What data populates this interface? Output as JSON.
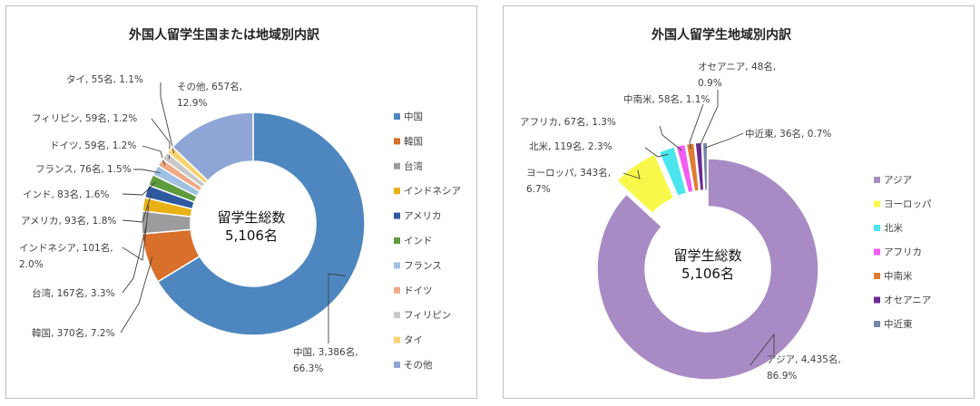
{
  "chart_data": [
    {
      "type": "pie",
      "title": "外国人留学生国または地域別内訳",
      "center_text": [
        "留学生総数",
        "5,106名"
      ],
      "legend_position": "right",
      "slices": [
        {
          "name": "中国",
          "value": 3386,
          "label": [
            "中国, 3,386名,",
            "66.3%"
          ],
          "color": "#4e86c0"
        },
        {
          "name": "韓国",
          "value": 370,
          "label": [
            "韓国, 370名, 7.2%"
          ],
          "color": "#d86f2a"
        },
        {
          "name": "台湾",
          "value": 167,
          "label": [
            "台湾, 167名, 3.3%"
          ],
          "color": "#9c9c9c"
        },
        {
          "name": "インドネシア",
          "value": 101,
          "label": [
            "インドネシア, 101名,",
            "2.0%"
          ],
          "color": "#e8b012"
        },
        {
          "name": "アメリカ",
          "value": 93,
          "label": [
            "アメリカ, 93名, 1.8%"
          ],
          "color": "#2f5aa0"
        },
        {
          "name": "インド",
          "value": 83,
          "label": [
            "インド, 83名, 1.6%"
          ],
          "color": "#5d9b3c"
        },
        {
          "name": "フランス",
          "value": 76,
          "label": [
            "フランス, 76名, 1.5%"
          ],
          "color": "#9ec0e2"
        },
        {
          "name": "ドイツ",
          "value": 59,
          "label": [
            "ドイツ, 59名, 1.2%"
          ],
          "color": "#f0aa86"
        },
        {
          "name": "フィリピン",
          "value": 59,
          "label": [
            "フィリピン, 59名, 1.2%"
          ],
          "color": "#c8c8c8"
        },
        {
          "name": "タイ",
          "value": 55,
          "label": [
            "タイ, 55名, 1.1%"
          ],
          "color": "#f8d36e"
        },
        {
          "name": "その他",
          "value": 657,
          "label": [
            "その他, 657名,",
            "12.9%"
          ],
          "color": "#8fa5d5"
        }
      ]
    },
    {
      "type": "pie",
      "title": "外国人留学生地域別内訳",
      "center_text": [
        "留学生総数",
        "5,106名"
      ],
      "legend_position": "right",
      "slices": [
        {
          "name": "アジア",
          "value": 4435,
          "label": [
            "アジア, 4,435名,",
            "86.9%"
          ],
          "color": "#a88bc4"
        },
        {
          "name": "ヨーロッパ",
          "value": 343,
          "label": [
            "ヨーロッパ, 343名,",
            "6.7%"
          ],
          "color": "#f8f84a"
        },
        {
          "name": "北米",
          "value": 119,
          "label": [
            "北米, 119名, 2.3%"
          ],
          "color": "#4be5ee"
        },
        {
          "name": "アフリカ",
          "value": 67,
          "label": [
            "アフリカ, 67名, 1.3%"
          ],
          "color": "#f25bf2"
        },
        {
          "name": "中南米",
          "value": 58,
          "label": [
            "中南米, 58名, 1.1%"
          ],
          "color": "#e07a34"
        },
        {
          "name": "オセアニア",
          "value": 48,
          "label": [
            "オセアニア, 48名,",
            "0.9%"
          ],
          "color": "#6a2a90"
        },
        {
          "name": "中近東",
          "value": 36,
          "label": [
            "中近東, 36名, 0.7%"
          ],
          "color": "#7385a8"
        }
      ]
    }
  ]
}
